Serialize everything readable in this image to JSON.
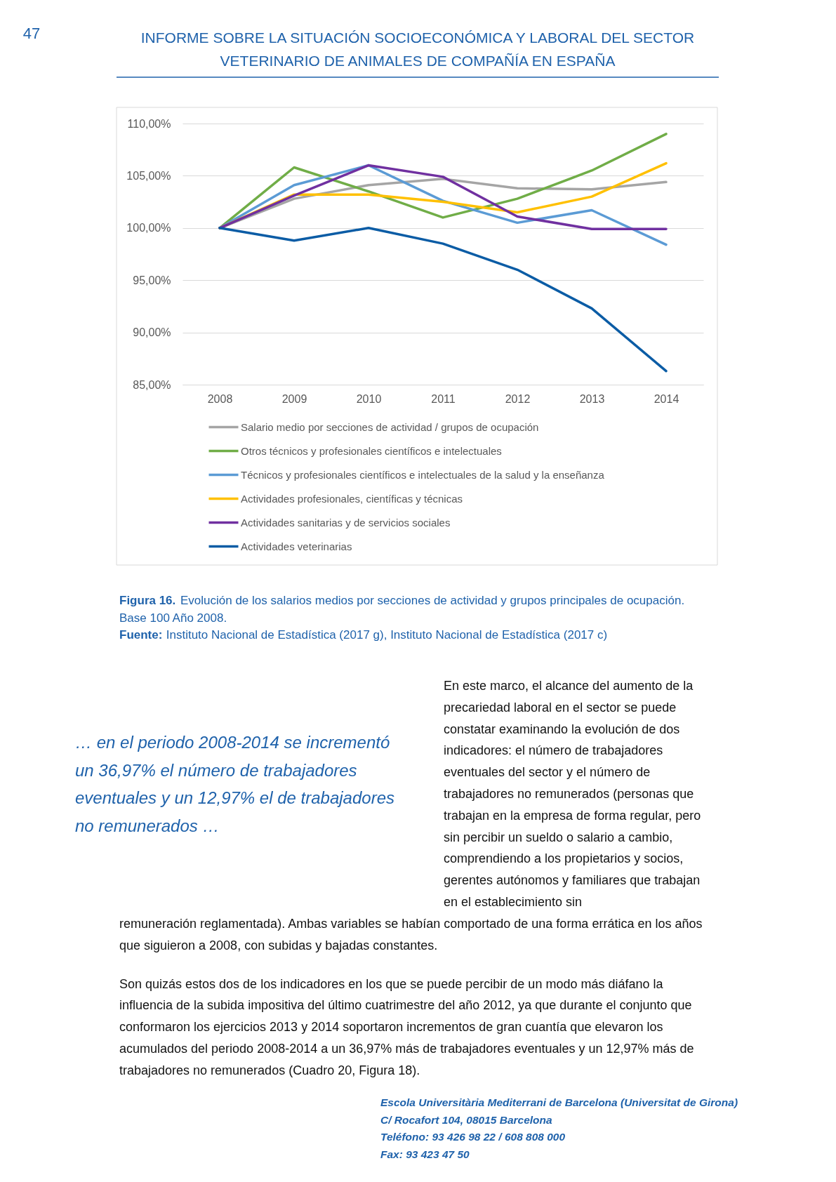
{
  "chart_data": {
    "type": "line",
    "categories": [
      "2008",
      "2009",
      "2010",
      "2011",
      "2012",
      "2013",
      "2014"
    ],
    "series": [
      {
        "name": "Salario medio por secciones de actividad / grupos de ocupación",
        "color": "#a5a5a5",
        "values": [
          100,
          102.8,
          104.1,
          104.7,
          103.8,
          103.7,
          104.4
        ]
      },
      {
        "name": "Otros técnicos y profesionales científicos e intelectuales",
        "color": "#70ad47",
        "values": [
          100,
          105.8,
          103.5,
          101.0,
          102.8,
          105.5,
          109.0
        ]
      },
      {
        "name": "Técnicos y profesionales científicos e intelectuales de la salud y la enseñanza",
        "color": "#5b9bd5",
        "values": [
          100,
          104.1,
          106.0,
          102.6,
          100.5,
          101.7,
          98.4
        ]
      },
      {
        "name": "Actividades profesionales, científicas y técnicas",
        "color": "#ffc000",
        "values": [
          100,
          103.2,
          103.2,
          102.5,
          101.5,
          103.0,
          106.2
        ]
      },
      {
        "name": "Actividades sanitarias y de servicios sociales",
        "color": "#7030a0",
        "values": [
          100,
          103.1,
          106.0,
          104.9,
          101.1,
          99.9,
          99.9
        ]
      },
      {
        "name": "Actividades veterinarias",
        "color": "#0b5ca5",
        "values": [
          100,
          98.8,
          100.0,
          98.5,
          96.0,
          92.3,
          86.3
        ]
      }
    ],
    "ylim": [
      85,
      110
    ],
    "yticks": [
      {
        "value": 85,
        "label": "85,00%"
      },
      {
        "value": 90,
        "label": "90,00%"
      },
      {
        "value": 95,
        "label": "95,00%"
      },
      {
        "value": 100,
        "label": "100,00%"
      },
      {
        "value": 105,
        "label": "105,00%"
      },
      {
        "value": 110,
        "label": "110,00%"
      }
    ],
    "grid": "y",
    "legend": "bottom",
    "annotations": [
      "47",
      "INFORME SOBRE LA SITUACIÓN SOCIOECONÓMICA Y LABORAL DEL SECTOR VETERINARIO DE ANIMALES DE COMPAÑÍA EN ESPAÑA",
      "Figura 16.",
      "Evolución de los salarios medios por secciones de actividad y grupos principales de ocupación.",
      "Base 100 Año 2008.",
      "Fuente:",
      "Instituto Nacional de Estadística (2017 g), Instituto Nacional de Estadística (2017 c)",
      "… en el periodo 2008-2014 se incrementó un 36,97% el número de trabajadores eventuales y un 12,97% el de trabajadores no remunerados …",
      "En este marco, el alcance del aumento de la precariedad laboral en el sector se puede constatar examinando la evolución de dos indicadores: el número de trabajadores eventuales del sector y el número de trabajadores no remunerados (personas que trabajan en la empresa de forma regular, pero sin percibir un sueldo o salario a cambio, comprendiendo a los propietarios y socios, gerentes autónomos y familiares que trabajan en el establecimiento sin",
      "remuneración reglamentada). Ambas variables se habían comportado de una forma errática en los años que siguieron a 2008, con subidas y bajadas constantes.",
      "Son quizás estos dos de los indicadores en los que se puede percibir de un modo más diáfano la influencia de la subida impositiva del último cuatrimestre del año 2012, ya que durante el conjunto que conformaron los ejercicios 2013 y 2014 soportaron incrementos de gran cuantía que elevaron los acumulados del periodo 2008-2014 a un 36,97% más de trabajadores eventuales y un 12,97% más de trabajadores no remunerados (Cuadro 20, Figura 18).",
      "Escola Universitària Mediterrani de Barcelona (Universitat de Girona)",
      "C/ Rocafort 104, 08015 Barcelona",
      "Teléfono: 93 426 98 22 / 608 808 000",
      "Fax: 93 423 47 50"
    ]
  }
}
